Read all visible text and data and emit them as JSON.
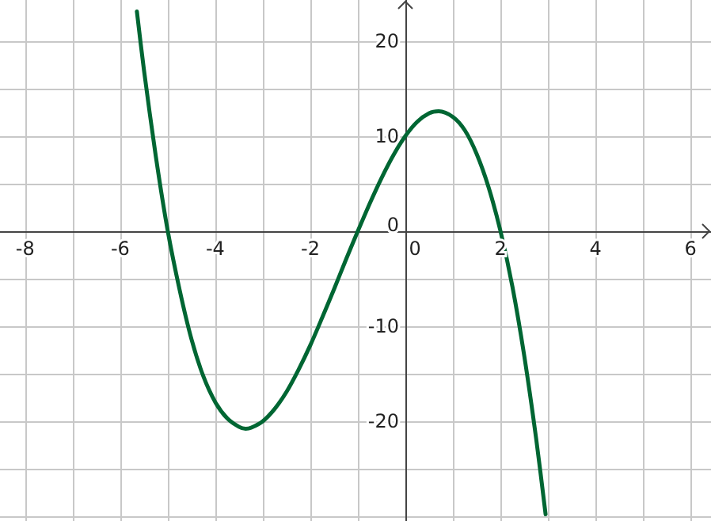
{
  "chart_data": {
    "type": "line",
    "x": [
      -5.65,
      -5.5,
      -5.25,
      -5,
      -4.75,
      -4.5,
      -4.25,
      -4,
      -3.75,
      -3.5,
      -3.36,
      -3.25,
      -3,
      -2.75,
      -2.5,
      -2.25,
      -2,
      -1.75,
      -1.5,
      -1.25,
      -1,
      -0.75,
      -0.5,
      -0.25,
      0,
      0.25,
      0.5,
      0.7,
      1,
      1.25,
      1.5,
      1.75,
      2,
      2.25,
      2.5,
      2.75,
      2.95
    ],
    "series": [
      {
        "color": "#006633",
        "values": [
          23.1,
          16.9,
          7.8,
          0,
          -6.2,
          -11.4,
          -15.3,
          -18,
          -19.7,
          -20.6,
          -20.8,
          -20.7,
          -20,
          -18.7,
          -16.9,
          -14.6,
          -12,
          -9.1,
          -6.1,
          -3,
          0,
          2.9,
          5.6,
          8,
          10,
          11.5,
          12.4,
          12.6,
          12,
          10.6,
          8.1,
          4.6,
          0,
          -5.8,
          -13.1,
          -21.8,
          -29.8
        ]
      }
    ],
    "xlim": [
      -8.53,
      6.43
    ],
    "ylim": [
      -30.5,
      24.3
    ],
    "xticks": [
      -8,
      {
        "value": -7,
        "label": null
      },
      -6,
      {
        "value": -5,
        "label": null
      },
      -4,
      {
        "value": -3,
        "label": null
      },
      -2,
      {
        "value": -1,
        "label": null
      },
      0,
      {
        "value": 1,
        "label": null
      },
      2,
      {
        "value": 3,
        "label": null
      },
      4,
      {
        "value": 5,
        "label": null
      },
      6
    ],
    "yticks": [
      {
        "value": -30,
        "label": null
      },
      {
        "value": -25,
        "label": null
      },
      -20,
      {
        "value": -15,
        "label": null
      },
      -10,
      {
        "value": -5,
        "label": null
      },
      0,
      {
        "value": 5,
        "label": null
      },
      10,
      {
        "value": 15,
        "label": null
      },
      20
    ],
    "grid": true,
    "marker": "none",
    "line_style": "solid"
  }
}
